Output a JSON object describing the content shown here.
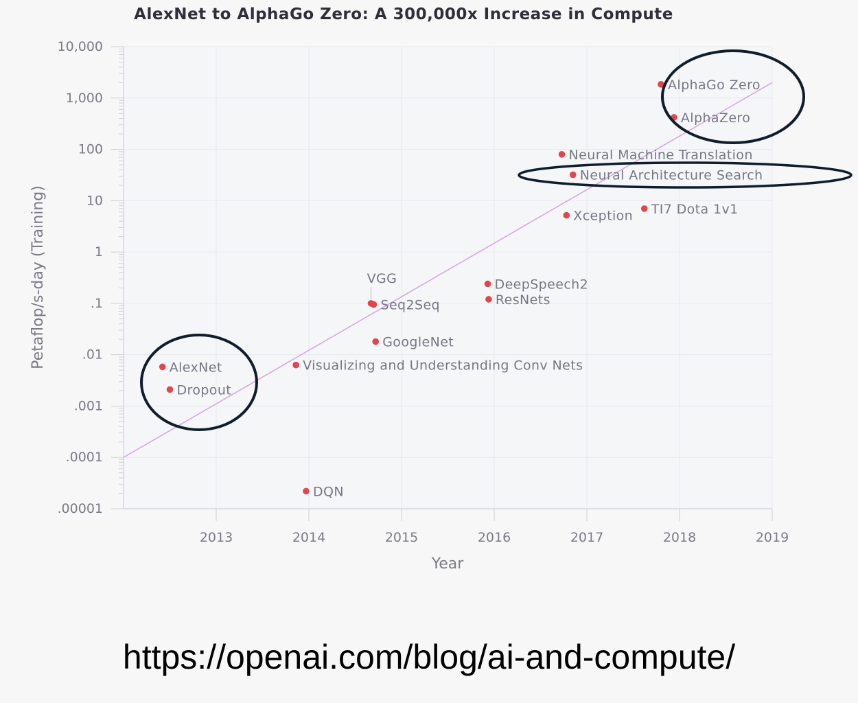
{
  "chart_data": {
    "type": "scatter",
    "title": "AlexNet to AlphaGo Zero: A 300,000x Increase in Compute",
    "xlabel": "Year",
    "ylabel": "Petaflop/s-day (Training)",
    "y_scale": "log",
    "xlim": [
      2012.0,
      2019.0
    ],
    "ylim": [
      1e-05,
      10000
    ],
    "x_ticks": [
      2013,
      2014,
      2015,
      2016,
      2017,
      2018,
      2019
    ],
    "y_ticks": [
      {
        "value": 1e-05,
        "label": ".00001"
      },
      {
        "value": 0.0001,
        "label": ".0001"
      },
      {
        "value": 0.001,
        "label": ".001"
      },
      {
        "value": 0.01,
        "label": ".01"
      },
      {
        "value": 0.1,
        "label": ".1"
      },
      {
        "value": 1,
        "label": "1"
      },
      {
        "value": 10,
        "label": "10"
      },
      {
        "value": 100,
        "label": "100"
      },
      {
        "value": 1000,
        "label": "1,000"
      },
      {
        "value": 10000,
        "label": "10,000"
      }
    ],
    "points": [
      {
        "name": "AlexNet",
        "x": 2012.42,
        "y": 0.0058,
        "label_pos": "right"
      },
      {
        "name": "Dropout",
        "x": 2012.5,
        "y": 0.0021,
        "label_pos": "right"
      },
      {
        "name": "DQN",
        "x": 2013.97,
        "y": 2.2e-05,
        "label_pos": "right"
      },
      {
        "name": "Visualizing and Understanding Conv Nets",
        "x": 2013.86,
        "y": 0.0063,
        "label_pos": "right"
      },
      {
        "name": "VGG",
        "x": 2014.67,
        "y": 0.1,
        "label_pos": "above"
      },
      {
        "name": "Seq2Seq",
        "x": 2014.7,
        "y": 0.095,
        "label_pos": "right"
      },
      {
        "name": "GoogleNet",
        "x": 2014.72,
        "y": 0.018,
        "label_pos": "right"
      },
      {
        "name": "DeepSpeech2",
        "x": 2015.93,
        "y": 0.24,
        "label_pos": "right"
      },
      {
        "name": "ResNets",
        "x": 2015.94,
        "y": 0.12,
        "label_pos": "right"
      },
      {
        "name": "Xception",
        "x": 2016.78,
        "y": 5.2,
        "label_pos": "right"
      },
      {
        "name": "Neural Machine Translation",
        "x": 2016.73,
        "y": 80,
        "label_pos": "right"
      },
      {
        "name": "Neural Architecture Search",
        "x": 2016.85,
        "y": 32,
        "label_pos": "right"
      },
      {
        "name": "TI7 Dota 1v1",
        "x": 2017.62,
        "y": 7.0,
        "label_pos": "right"
      },
      {
        "name": "AlphaGo Zero",
        "x": 2017.8,
        "y": 1850,
        "label_pos": "right"
      },
      {
        "name": "AlphaZero",
        "x": 2017.94,
        "y": 420,
        "label_pos": "right"
      }
    ],
    "trend_line": {
      "x": [
        2012.0,
        2019.0
      ],
      "y": [
        0.0001,
        2000
      ]
    },
    "grid": true,
    "colors": {
      "point": "#e0464b",
      "trend": "#d9a6e6",
      "grid": "#e9e9ee",
      "axis": "#cfcfd6",
      "annotation": "#0f1d2c"
    }
  },
  "annotations": {
    "ellipses": [
      {
        "target": "AlexNet / Dropout"
      },
      {
        "target": "AlphaGo Zero / AlphaZero"
      },
      {
        "target": "Neural Architecture Search"
      }
    ]
  },
  "footer": {
    "url": "https://openai.com/blog/ai-and-compute/"
  }
}
